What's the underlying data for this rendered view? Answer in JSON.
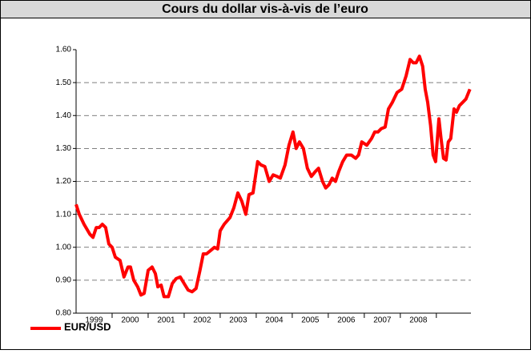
{
  "chart_data": {
    "type": "line",
    "title": "Cours du dollar vis-à-vis de l’euro",
    "xlim": [
      1999,
      2009.96
    ],
    "ylim": [
      0.8,
      1.6
    ],
    "yticks": [
      {
        "value": 0.8,
        "label": "0.80"
      },
      {
        "value": 0.9,
        "label": "0.90"
      },
      {
        "value": 1.0,
        "label": "1.00"
      },
      {
        "value": 1.1,
        "label": "1.10"
      },
      {
        "value": 1.2,
        "label": "1.20"
      },
      {
        "value": 1.3,
        "label": "1.30"
      },
      {
        "value": 1.4,
        "label": "1.40"
      },
      {
        "value": 1.5,
        "label": "1.50"
      },
      {
        "value": 1.6,
        "label": "1.60"
      }
    ],
    "xticks": [
      {
        "value": 1999.5,
        "label": "1999"
      },
      {
        "value": 2000.5,
        "label": "2000"
      },
      {
        "value": 2001.5,
        "label": "2001"
      },
      {
        "value": 2002.5,
        "label": "2002"
      },
      {
        "value": 2003.5,
        "label": "2003"
      },
      {
        "value": 2004.5,
        "label": "2004"
      },
      {
        "value": 2005.5,
        "label": "2005"
      },
      {
        "value": 2006.5,
        "label": "2006"
      },
      {
        "value": 2007.5,
        "label": "2007"
      },
      {
        "value": 2008.5,
        "label": "2008"
      }
    ],
    "grid": true,
    "legend": "bottom-left",
    "x": [
      1999.0,
      1999.09,
      1999.22,
      1999.38,
      1999.47,
      1999.56,
      1999.64,
      1999.73,
      1999.82,
      1999.91,
      2000.0,
      2000.09,
      2000.22,
      2000.33,
      2000.44,
      2000.51,
      2000.6,
      2000.71,
      2000.8,
      2000.89,
      2001.0,
      2001.11,
      2001.2,
      2001.27,
      2001.36,
      2001.44,
      2001.56,
      2001.67,
      2001.78,
      2001.89,
      2002.0,
      2002.11,
      2002.22,
      2002.33,
      2002.44,
      2002.53,
      2002.62,
      2002.73,
      2002.84,
      2002.93,
      2003.0,
      2003.11,
      2003.27,
      2003.38,
      2003.49,
      2003.6,
      2003.71,
      2003.8,
      2003.91,
      2004.04,
      2004.13,
      2004.24,
      2004.36,
      2004.47,
      2004.58,
      2004.67,
      2004.8,
      2004.91,
      2005.02,
      2005.11,
      2005.2,
      2005.31,
      2005.42,
      2005.53,
      2005.64,
      2005.73,
      2005.84,
      2005.93,
      2006.02,
      2006.11,
      2006.2,
      2006.29,
      2006.4,
      2006.51,
      2006.64,
      2006.76,
      2006.84,
      2006.93,
      2007.07,
      2007.2,
      2007.29,
      2007.38,
      2007.47,
      2007.58,
      2007.67,
      2007.78,
      2007.91,
      2008.04,
      2008.16,
      2008.27,
      2008.36,
      2008.44,
      2008.53,
      2008.62,
      2008.69,
      2008.76,
      2008.84,
      2008.91,
      2008.98,
      2009.07,
      2009.13,
      2009.2,
      2009.27,
      2009.33,
      2009.4,
      2009.49,
      2009.56,
      2009.64,
      2009.73,
      2009.82,
      2009.93
    ],
    "series": [
      {
        "name": "EUR/USD",
        "color": "#ff0000",
        "values": [
          1.13,
          1.1,
          1.07,
          1.04,
          1.03,
          1.06,
          1.06,
          1.07,
          1.06,
          1.01,
          1.0,
          0.97,
          0.96,
          0.91,
          0.94,
          0.94,
          0.9,
          0.88,
          0.855,
          0.86,
          0.93,
          0.94,
          0.92,
          0.88,
          0.885,
          0.85,
          0.85,
          0.89,
          0.905,
          0.91,
          0.89,
          0.87,
          0.865,
          0.875,
          0.93,
          0.98,
          0.98,
          0.99,
          1.0,
          0.995,
          1.05,
          1.07,
          1.09,
          1.12,
          1.165,
          1.14,
          1.1,
          1.16,
          1.165,
          1.26,
          1.25,
          1.245,
          1.2,
          1.22,
          1.215,
          1.21,
          1.25,
          1.31,
          1.35,
          1.3,
          1.32,
          1.3,
          1.24,
          1.215,
          1.23,
          1.24,
          1.2,
          1.18,
          1.19,
          1.21,
          1.2,
          1.23,
          1.26,
          1.28,
          1.28,
          1.27,
          1.28,
          1.32,
          1.31,
          1.33,
          1.35,
          1.35,
          1.36,
          1.365,
          1.42,
          1.44,
          1.47,
          1.48,
          1.52,
          1.57,
          1.56,
          1.56,
          1.58,
          1.55,
          1.48,
          1.44,
          1.37,
          1.28,
          1.26,
          1.39,
          1.33,
          1.27,
          1.265,
          1.32,
          1.33,
          1.42,
          1.41,
          1.43,
          1.44,
          1.45,
          1.48
        ]
      }
    ]
  }
}
